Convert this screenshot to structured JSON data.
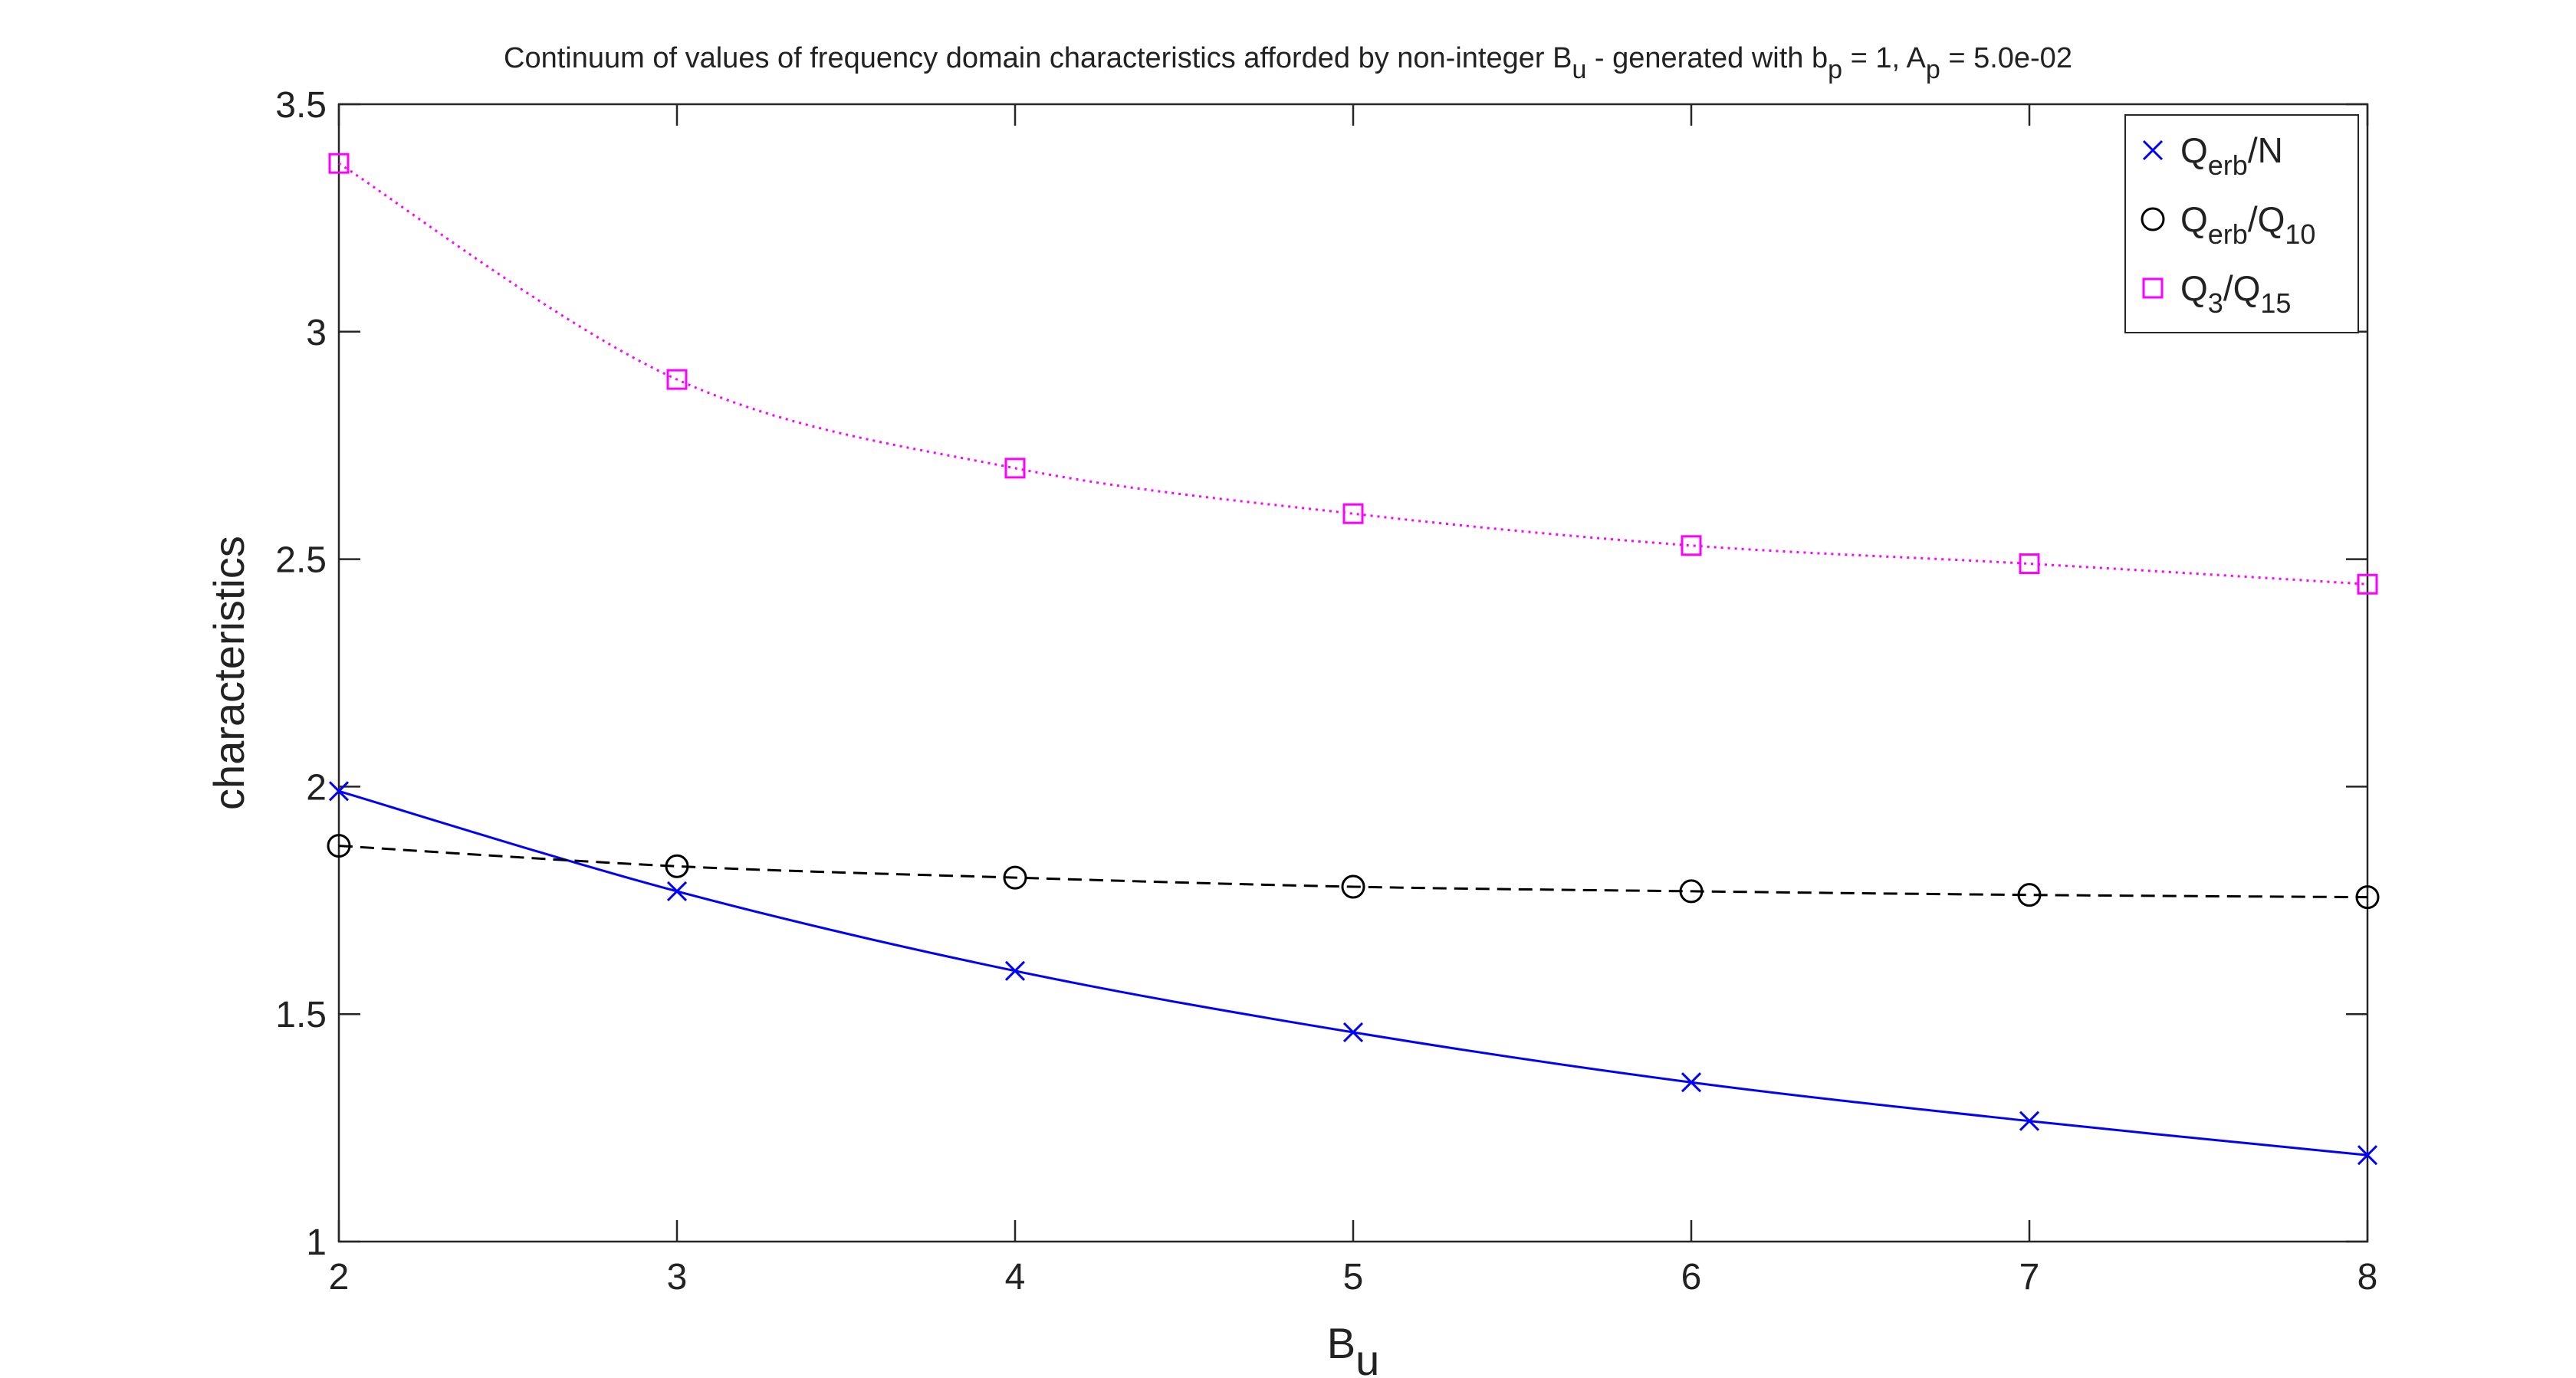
{
  "chart_data": {
    "type": "line",
    "title": {
      "prefix": "Continuum of values of frequency domain characteristics afforded by non-integer B",
      "sub1": "u",
      "mid1": " - generated with b",
      "sub2": "p",
      "mid2": " = 1, A",
      "sub3": "p",
      "suffix": " = 5.0e-02"
    },
    "xlabel": {
      "main": "B",
      "sub": "u"
    },
    "ylabel": "characteristics",
    "xlim": [
      2,
      8
    ],
    "ylim": [
      1,
      3.5
    ],
    "x_ticks": [
      "2",
      "3",
      "4",
      "5",
      "6",
      "7",
      "8"
    ],
    "y_ticks": [
      "1",
      "1.5",
      "2",
      "2.5",
      "3",
      "3.5"
    ],
    "legend_position": "top-right",
    "grid": false,
    "x": [
      2,
      3,
      4,
      5,
      6,
      7,
      8
    ],
    "series": [
      {
        "name": "Q_erb/N",
        "label": {
          "a": "Q",
          "a_sub": "erb",
          "b": "/N",
          "b_sub": ""
        },
        "color": "#0000ff",
        "line_style": "solid",
        "marker": "x",
        "values": [
          1.99,
          1.77,
          1.595,
          1.46,
          1.35,
          1.265,
          1.19
        ]
      },
      {
        "name": "Q_erb/Q_10",
        "label": {
          "a": "Q",
          "a_sub": "erb",
          "b": "/Q",
          "b_sub": "10"
        },
        "color": "#000000",
        "line_style": "dashed",
        "marker": "circle",
        "values": [
          1.87,
          1.825,
          1.8,
          1.78,
          1.77,
          1.762,
          1.757
        ]
      },
      {
        "name": "Q_3/Q_15",
        "label": {
          "a": "Q",
          "a_sub": "3",
          "b": "/Q",
          "b_sub": "15"
        },
        "color": "#ff00ff",
        "line_style": "dotted",
        "marker": "square",
        "values": [
          3.37,
          2.895,
          2.7,
          2.6,
          2.53,
          2.49,
          2.445
        ]
      }
    ]
  }
}
